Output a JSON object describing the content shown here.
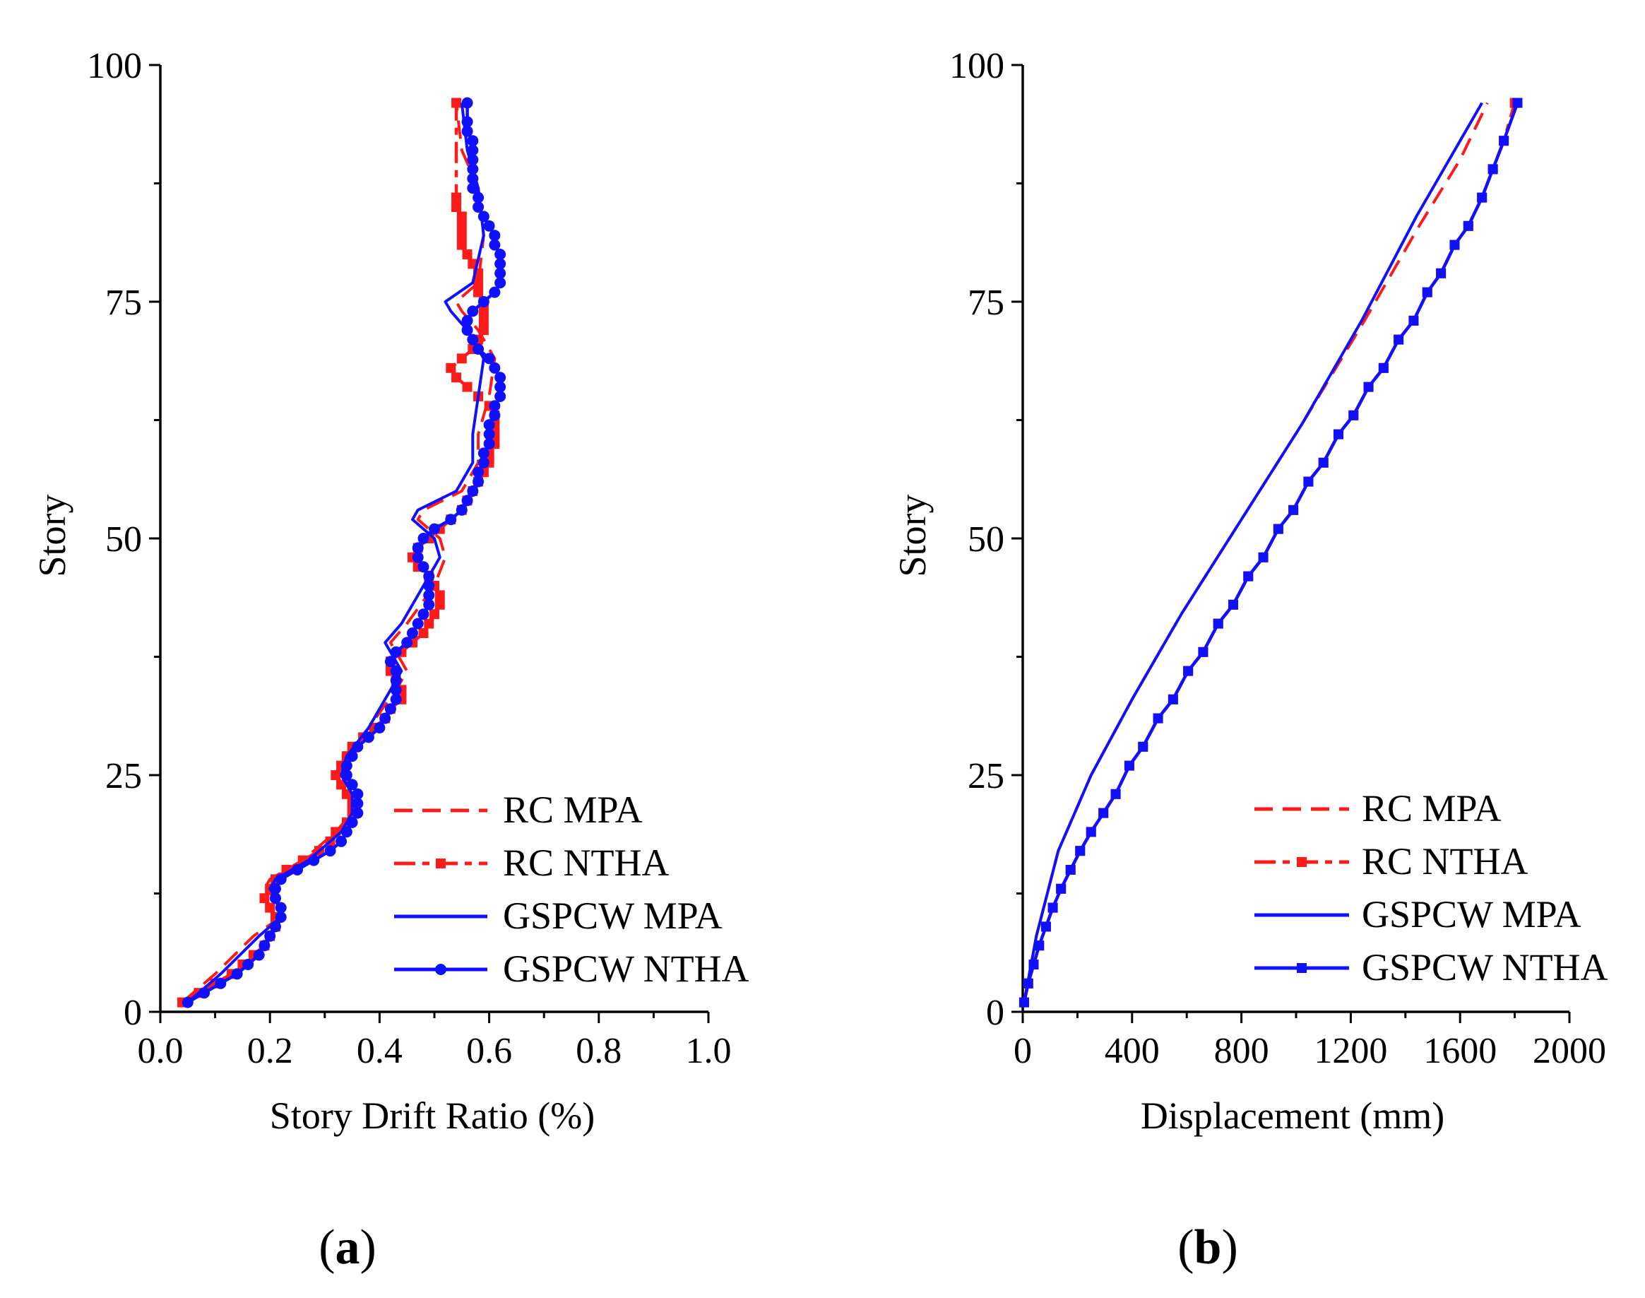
{
  "colors": {
    "rc": "#ff1a1a",
    "gspcw": "#1010ff"
  },
  "chart_data": [
    {
      "type": "line",
      "panel_label": "a",
      "xlabel": "Story Drift Ratio (%)",
      "ylabel": "Story",
      "xlim": [
        0,
        1.0
      ],
      "ylim": [
        0,
        100
      ],
      "xticks": [
        "0.0",
        "0.2",
        "0.4",
        "0.6",
        "0.8",
        "1.0"
      ],
      "yticks": [
        "0",
        "25",
        "50",
        "75",
        "100"
      ],
      "legend_position": "bottom-right",
      "series": [
        {
          "name": "RC MPA",
          "color": "rc",
          "style": "dashed",
          "marker": "none",
          "x": [
            0.04,
            0.1,
            0.17,
            0.22,
            0.21,
            0.19,
            0.2,
            0.26,
            0.32,
            0.35,
            0.36,
            0.33,
            0.34,
            0.38,
            0.43,
            0.45,
            0.43,
            0.42,
            0.45,
            0.5,
            0.52,
            0.51,
            0.47,
            0.48,
            0.55,
            0.58,
            0.58,
            0.6,
            0.61,
            0.58,
            0.55,
            0.54,
            0.58,
            0.59,
            0.58,
            0.55,
            0.54
          ],
          "y": [
            1,
            4,
            8,
            10,
            12,
            13,
            14,
            16,
            19,
            21,
            23,
            25,
            27,
            30,
            34,
            36,
            38,
            39,
            41,
            45,
            48,
            50,
            52,
            53,
            55,
            58,
            61,
            65,
            69,
            72,
            74,
            75,
            77,
            82,
            87,
            91,
            96
          ]
        },
        {
          "name": "RC NTHA",
          "color": "rc",
          "style": "dashdot",
          "marker": "square",
          "x": [
            0.04,
            0.07,
            0.1,
            0.13,
            0.15,
            0.17,
            0.19,
            0.2,
            0.21,
            0.21,
            0.2,
            0.19,
            0.2,
            0.21,
            0.23,
            0.26,
            0.29,
            0.31,
            0.32,
            0.34,
            0.35,
            0.35,
            0.34,
            0.33,
            0.32,
            0.33,
            0.34,
            0.35,
            0.37,
            0.39,
            0.41,
            0.42,
            0.44,
            0.44,
            0.43,
            0.42,
            0.42,
            0.44,
            0.46,
            0.48,
            0.49,
            0.5,
            0.51,
            0.51,
            0.5,
            0.49,
            0.47,
            0.46,
            0.47,
            0.49,
            0.51,
            0.53,
            0.55,
            0.56,
            0.57,
            0.58,
            0.59,
            0.6,
            0.6,
            0.61,
            0.61,
            0.61,
            0.61,
            0.6,
            0.58,
            0.56,
            0.54,
            0.53,
            0.55,
            0.57,
            0.58,
            0.59,
            0.59,
            0.59,
            0.59,
            0.58,
            0.58,
            0.58,
            0.57,
            0.56,
            0.55,
            0.55,
            0.55,
            0.55,
            0.54,
            0.54,
            0.54
          ],
          "y": [
            1,
            2,
            3,
            4,
            5,
            6,
            7,
            8,
            9,
            10,
            11,
            12,
            13,
            14,
            15,
            16,
            17,
            18,
            19,
            20,
            21,
            22,
            23,
            24,
            25,
            26,
            27,
            28,
            29,
            30,
            31,
            32,
            33,
            34,
            35,
            36,
            37,
            38,
            39,
            40,
            41,
            42,
            43,
            44,
            45,
            46,
            47,
            48,
            49,
            50,
            51,
            52,
            53,
            54,
            55,
            56,
            57,
            58,
            59,
            60,
            61,
            62,
            63,
            64,
            65,
            66,
            67,
            68,
            69,
            70,
            71,
            72,
            73,
            74,
            75,
            76,
            77,
            78,
            79,
            80,
            81,
            82,
            83,
            84,
            85,
            86,
            96
          ]
        },
        {
          "name": "GSPCW MPA",
          "color": "gspcw",
          "style": "solid",
          "marker": "none",
          "x": [
            0.05,
            0.11,
            0.18,
            0.22,
            0.21,
            0.2,
            0.21,
            0.27,
            0.33,
            0.35,
            0.35,
            0.33,
            0.34,
            0.38,
            0.42,
            0.44,
            0.42,
            0.41,
            0.44,
            0.48,
            0.51,
            0.5,
            0.46,
            0.47,
            0.54,
            0.57,
            0.57,
            0.58,
            0.59,
            0.56,
            0.53,
            0.52,
            0.57,
            0.59,
            0.58,
            0.56,
            0.55
          ],
          "y": [
            1,
            4,
            8,
            10,
            12,
            13,
            14,
            16,
            19,
            21,
            23,
            25,
            27,
            30,
            34,
            36,
            38,
            39,
            41,
            45,
            48,
            50,
            52,
            53,
            55,
            58,
            61,
            65,
            69,
            72,
            74,
            75,
            77,
            82,
            87,
            91,
            96
          ]
        },
        {
          "name": "GSPCW NTHA",
          "color": "gspcw",
          "style": "solid",
          "marker": "circle",
          "x": [
            0.05,
            0.08,
            0.11,
            0.14,
            0.16,
            0.18,
            0.19,
            0.2,
            0.21,
            0.22,
            0.22,
            0.21,
            0.21,
            0.22,
            0.25,
            0.28,
            0.31,
            0.33,
            0.34,
            0.35,
            0.36,
            0.36,
            0.36,
            0.35,
            0.34,
            0.34,
            0.35,
            0.36,
            0.38,
            0.4,
            0.41,
            0.42,
            0.43,
            0.43,
            0.43,
            0.43,
            0.42,
            0.43,
            0.45,
            0.46,
            0.47,
            0.48,
            0.49,
            0.49,
            0.49,
            0.49,
            0.48,
            0.47,
            0.47,
            0.48,
            0.5,
            0.53,
            0.55,
            0.56,
            0.57,
            0.58,
            0.58,
            0.59,
            0.59,
            0.6,
            0.6,
            0.6,
            0.61,
            0.61,
            0.62,
            0.62,
            0.62,
            0.61,
            0.6,
            0.58,
            0.57,
            0.56,
            0.56,
            0.57,
            0.59,
            0.61,
            0.62,
            0.62,
            0.62,
            0.62,
            0.61,
            0.61,
            0.6,
            0.59,
            0.58,
            0.58,
            0.57,
            0.57,
            0.57,
            0.57,
            0.57,
            0.57,
            0.56,
            0.56,
            0.56
          ],
          "y": [
            1,
            2,
            3,
            4,
            5,
            6,
            7,
            8,
            9,
            10,
            11,
            12,
            13,
            14,
            15,
            16,
            17,
            18,
            19,
            20,
            21,
            22,
            23,
            24,
            25,
            26,
            27,
            28,
            29,
            30,
            31,
            32,
            33,
            34,
            35,
            36,
            37,
            38,
            39,
            40,
            41,
            42,
            43,
            44,
            45,
            46,
            47,
            48,
            49,
            50,
            51,
            52,
            53,
            54,
            55,
            56,
            57,
            58,
            59,
            60,
            61,
            62,
            63,
            64,
            65,
            66,
            67,
            68,
            69,
            70,
            71,
            72,
            73,
            74,
            75,
            76,
            77,
            78,
            79,
            80,
            81,
            82,
            83,
            84,
            85,
            86,
            87,
            88,
            89,
            90,
            91,
            92,
            93,
            94,
            96
          ]
        }
      ]
    },
    {
      "type": "line",
      "panel_label": "b",
      "xlabel": "Displacement (mm)",
      "ylabel": "Story",
      "xlim": [
        0,
        2000
      ],
      "ylim": [
        0,
        100
      ],
      "xticks": [
        "0",
        "400",
        "800",
        "1200",
        "1600",
        "2000"
      ],
      "yticks": [
        "0",
        "25",
        "50",
        "75",
        "100"
      ],
      "legend_position": "bottom-right",
      "series": [
        {
          "name": "RC MPA",
          "color": "rc",
          "style": "dashed",
          "marker": "none",
          "x": [
            5,
            50,
            130,
            250,
            400,
            580,
            800,
            1020,
            1250,
            1450,
            1600,
            1700
          ],
          "y": [
            1,
            8,
            17,
            25,
            33,
            42,
            52,
            62,
            73,
            83,
            90,
            96
          ]
        },
        {
          "name": "RC NTHA",
          "color": "rc",
          "style": "dashdot",
          "marker": "square",
          "x": [
            5,
            20,
            40,
            60,
            85,
            110,
            140,
            175,
            210,
            250,
            295,
            340,
            390,
            440,
            495,
            550,
            605,
            660,
            715,
            770,
            825,
            880,
            935,
            990,
            1045,
            1100,
            1155,
            1210,
            1265,
            1320,
            1375,
            1430,
            1480,
            1530,
            1580,
            1630,
            1680,
            1720,
            1760,
            1800
          ],
          "y": [
            1,
            3,
            5,
            7,
            9,
            11,
            13,
            15,
            17,
            19,
            21,
            23,
            26,
            28,
            31,
            33,
            36,
            38,
            41,
            43,
            46,
            48,
            51,
            53,
            56,
            58,
            61,
            63,
            66,
            68,
            71,
            73,
            76,
            78,
            81,
            83,
            86,
            89,
            92,
            96
          ]
        },
        {
          "name": "GSPCW MPA",
          "color": "gspcw",
          "style": "solid",
          "marker": "none",
          "x": [
            5,
            50,
            130,
            250,
            400,
            580,
            800,
            1020,
            1240,
            1440,
            1580,
            1680
          ],
          "y": [
            1,
            8,
            17,
            25,
            33,
            42,
            52,
            62,
            73,
            84,
            91,
            96
          ]
        },
        {
          "name": "GSPCW NTHA",
          "color": "gspcw",
          "style": "solid",
          "marker": "square",
          "x": [
            5,
            20,
            40,
            60,
            85,
            110,
            140,
            175,
            210,
            250,
            295,
            340,
            390,
            440,
            495,
            550,
            605,
            660,
            715,
            770,
            825,
            880,
            935,
            990,
            1045,
            1100,
            1155,
            1210,
            1265,
            1320,
            1375,
            1430,
            1480,
            1530,
            1580,
            1630,
            1680,
            1720,
            1760,
            1810
          ],
          "y": [
            1,
            3,
            5,
            7,
            9,
            11,
            13,
            15,
            17,
            19,
            21,
            23,
            26,
            28,
            31,
            33,
            36,
            38,
            41,
            43,
            46,
            48,
            51,
            53,
            56,
            58,
            61,
            63,
            66,
            68,
            71,
            73,
            76,
            78,
            81,
            83,
            86,
            89,
            92,
            96
          ]
        }
      ]
    }
  ]
}
